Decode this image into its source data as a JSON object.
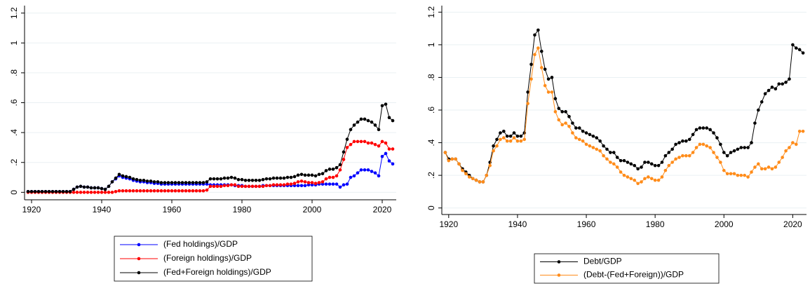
{
  "chart_data": [
    {
      "type": "line",
      "x": [
        1919,
        1920,
        1921,
        1922,
        1923,
        1924,
        1925,
        1926,
        1927,
        1928,
        1929,
        1930,
        1931,
        1932,
        1933,
        1934,
        1935,
        1936,
        1937,
        1938,
        1939,
        1940,
        1941,
        1942,
        1943,
        1944,
        1945,
        1946,
        1947,
        1948,
        1949,
        1950,
        1951,
        1952,
        1953,
        1954,
        1955,
        1956,
        1957,
        1958,
        1959,
        1960,
        1961,
        1962,
        1963,
        1964,
        1965,
        1966,
        1967,
        1968,
        1969,
        1970,
        1971,
        1972,
        1973,
        1974,
        1975,
        1976,
        1977,
        1978,
        1979,
        1980,
        1981,
        1982,
        1983,
        1984,
        1985,
        1986,
        1987,
        1988,
        1989,
        1990,
        1991,
        1992,
        1993,
        1994,
        1995,
        1996,
        1997,
        1998,
        1999,
        2000,
        2001,
        2002,
        2003,
        2004,
        2005,
        2006,
        2007,
        2008,
        2009,
        2010,
        2011,
        2012,
        2013,
        2014,
        2015,
        2016,
        2017,
        2018,
        2019,
        2020,
        2021,
        2022,
        2023
      ],
      "series": [
        {
          "name": "(Fed holdings)/GDP",
          "color": "#0000ff",
          "values": [
            0.005,
            0.005,
            0.005,
            0.005,
            0.005,
            0.005,
            0.005,
            0.005,
            0.005,
            0.005,
            0.005,
            0.005,
            0.005,
            0.02,
            0.035,
            0.04,
            0.035,
            0.035,
            0.03,
            0.03,
            0.03,
            0.025,
            0.02,
            0.04,
            0.07,
            0.09,
            0.11,
            0.1,
            0.095,
            0.09,
            0.08,
            0.075,
            0.07,
            0.07,
            0.065,
            0.065,
            0.06,
            0.06,
            0.055,
            0.055,
            0.055,
            0.055,
            0.055,
            0.055,
            0.055,
            0.055,
            0.055,
            0.055,
            0.055,
            0.055,
            0.055,
            0.055,
            0.05,
            0.05,
            0.05,
            0.05,
            0.05,
            0.05,
            0.05,
            0.045,
            0.045,
            0.045,
            0.04,
            0.04,
            0.04,
            0.04,
            0.04,
            0.045,
            0.045,
            0.045,
            0.045,
            0.045,
            0.045,
            0.045,
            0.045,
            0.045,
            0.045,
            0.045,
            0.045,
            0.045,
            0.05,
            0.05,
            0.05,
            0.055,
            0.055,
            0.055,
            0.055,
            0.055,
            0.055,
            0.035,
            0.05,
            0.055,
            0.1,
            0.11,
            0.13,
            0.15,
            0.15,
            0.15,
            0.14,
            0.13,
            0.11,
            0.24,
            0.26,
            0.21,
            0.19
          ]
        },
        {
          "name": "(Foreign holdings)/GDP",
          "color": "#ff0000",
          "values": [
            0,
            0,
            0,
            0,
            0,
            0,
            0,
            0,
            0,
            0,
            0,
            0,
            0,
            0,
            0,
            0,
            0,
            0,
            0,
            0,
            0,
            0,
            0,
            0,
            0,
            0.005,
            0.01,
            0.01,
            0.01,
            0.01,
            0.01,
            0.01,
            0.01,
            0.01,
            0.01,
            0.01,
            0.01,
            0.01,
            0.01,
            0.01,
            0.01,
            0.01,
            0.01,
            0.01,
            0.01,
            0.01,
            0.01,
            0.01,
            0.01,
            0.01,
            0.01,
            0.015,
            0.04,
            0.04,
            0.04,
            0.04,
            0.045,
            0.045,
            0.05,
            0.05,
            0.04,
            0.04,
            0.04,
            0.04,
            0.04,
            0.04,
            0.04,
            0.04,
            0.045,
            0.045,
            0.05,
            0.05,
            0.05,
            0.05,
            0.055,
            0.055,
            0.06,
            0.07,
            0.075,
            0.07,
            0.065,
            0.065,
            0.06,
            0.065,
            0.07,
            0.09,
            0.1,
            0.1,
            0.11,
            0.15,
            0.22,
            0.3,
            0.32,
            0.34,
            0.34,
            0.34,
            0.34,
            0.33,
            0.33,
            0.32,
            0.31,
            0.34,
            0.33,
            0.29,
            0.29
          ]
        },
        {
          "name": "(Fed+Foreign holdings)/GDP",
          "color": "#000000",
          "values": [
            0.005,
            0.005,
            0.005,
            0.005,
            0.005,
            0.005,
            0.005,
            0.005,
            0.005,
            0.005,
            0.005,
            0.005,
            0.005,
            0.02,
            0.035,
            0.04,
            0.035,
            0.035,
            0.03,
            0.03,
            0.03,
            0.025,
            0.02,
            0.04,
            0.07,
            0.095,
            0.12,
            0.11,
            0.105,
            0.1,
            0.09,
            0.085,
            0.08,
            0.08,
            0.075,
            0.075,
            0.07,
            0.07,
            0.065,
            0.065,
            0.065,
            0.065,
            0.065,
            0.065,
            0.065,
            0.065,
            0.065,
            0.065,
            0.065,
            0.065,
            0.065,
            0.07,
            0.09,
            0.09,
            0.09,
            0.09,
            0.095,
            0.095,
            0.1,
            0.095,
            0.085,
            0.085,
            0.08,
            0.08,
            0.08,
            0.08,
            0.08,
            0.085,
            0.09,
            0.09,
            0.095,
            0.095,
            0.095,
            0.095,
            0.1,
            0.1,
            0.105,
            0.115,
            0.12,
            0.115,
            0.115,
            0.115,
            0.11,
            0.12,
            0.125,
            0.145,
            0.155,
            0.155,
            0.165,
            0.185,
            0.27,
            0.355,
            0.42,
            0.45,
            0.47,
            0.49,
            0.49,
            0.48,
            0.47,
            0.45,
            0.42,
            0.58,
            0.59,
            0.5,
            0.48
          ]
        }
      ],
      "xlim": [
        1918,
        2024
      ],
      "ylim": [
        -0.05,
        1.25
      ],
      "xticks": [
        1920,
        1940,
        1960,
        1980,
        2000,
        2020
      ],
      "yticks": [
        0,
        {
          "value": 0.2,
          "label": ".2"
        },
        {
          "value": 0.4,
          "label": ".4"
        },
        {
          "value": 0.6,
          "label": ".6"
        },
        {
          "value": 0.8,
          "label": ".8"
        },
        1,
        {
          "value": 1.2,
          "label": "1.2"
        }
      ],
      "grid": true,
      "legend": "bottom"
    },
    {
      "type": "line",
      "x": [
        1919,
        1920,
        1921,
        1922,
        1923,
        1924,
        1925,
        1926,
        1927,
        1928,
        1929,
        1930,
        1931,
        1932,
        1933,
        1934,
        1935,
        1936,
        1937,
        1938,
        1939,
        1940,
        1941,
        1942,
        1943,
        1944,
        1945,
        1946,
        1947,
        1948,
        1949,
        1950,
        1951,
        1952,
        1953,
        1954,
        1955,
        1956,
        1957,
        1958,
        1959,
        1960,
        1961,
        1962,
        1963,
        1964,
        1965,
        1966,
        1967,
        1968,
        1969,
        1970,
        1971,
        1972,
        1973,
        1974,
        1975,
        1976,
        1977,
        1978,
        1979,
        1980,
        1981,
        1982,
        1983,
        1984,
        1985,
        1986,
        1987,
        1988,
        1989,
        1990,
        1991,
        1992,
        1993,
        1994,
        1995,
        1996,
        1997,
        1998,
        1999,
        2000,
        2001,
        2002,
        2003,
        2004,
        2005,
        2006,
        2007,
        2008,
        2009,
        2010,
        2011,
        2012,
        2013,
        2014,
        2015,
        2016,
        2017,
        2018,
        2019,
        2020,
        2021,
        2022,
        2023
      ],
      "series": [
        {
          "name": "Debt/GDP",
          "color": "#000000",
          "values": [
            0.34,
            0.3,
            0.3,
            0.3,
            0.27,
            0.24,
            0.22,
            0.2,
            0.18,
            0.17,
            0.16,
            0.16,
            0.2,
            0.28,
            0.38,
            0.42,
            0.46,
            0.47,
            0.44,
            0.44,
            0.46,
            0.44,
            0.44,
            0.46,
            0.71,
            0.88,
            1.06,
            1.09,
            0.96,
            0.85,
            0.79,
            0.8,
            0.67,
            0.61,
            0.59,
            0.59,
            0.56,
            0.52,
            0.49,
            0.49,
            0.47,
            0.46,
            0.45,
            0.44,
            0.43,
            0.41,
            0.38,
            0.36,
            0.34,
            0.34,
            0.31,
            0.29,
            0.29,
            0.28,
            0.27,
            0.26,
            0.24,
            0.25,
            0.28,
            0.28,
            0.27,
            0.26,
            0.26,
            0.28,
            0.32,
            0.34,
            0.36,
            0.39,
            0.4,
            0.41,
            0.41,
            0.42,
            0.45,
            0.48,
            0.49,
            0.49,
            0.49,
            0.48,
            0.46,
            0.43,
            0.39,
            0.34,
            0.32,
            0.34,
            0.35,
            0.36,
            0.37,
            0.37,
            0.37,
            0.4,
            0.52,
            0.6,
            0.65,
            0.7,
            0.72,
            0.74,
            0.73,
            0.76,
            0.76,
            0.77,
            0.79,
            1.0,
            0.98,
            0.97,
            0.95
          ]
        },
        {
          "name": "(Debt-(Fed+Foreign))/GDP",
          "color": "#ff8c1a",
          "values": [
            0.34,
            0.29,
            0.3,
            0.3,
            0.27,
            0.23,
            0.21,
            0.19,
            0.18,
            0.17,
            0.16,
            0.16,
            0.2,
            0.26,
            0.35,
            0.38,
            0.42,
            0.43,
            0.41,
            0.41,
            0.43,
            0.41,
            0.41,
            0.42,
            0.64,
            0.79,
            0.94,
            0.98,
            0.86,
            0.75,
            0.71,
            0.71,
            0.59,
            0.54,
            0.51,
            0.52,
            0.5,
            0.46,
            0.43,
            0.42,
            0.41,
            0.39,
            0.38,
            0.37,
            0.36,
            0.35,
            0.32,
            0.3,
            0.28,
            0.27,
            0.25,
            0.22,
            0.2,
            0.19,
            0.18,
            0.17,
            0.15,
            0.16,
            0.18,
            0.19,
            0.18,
            0.17,
            0.17,
            0.19,
            0.23,
            0.26,
            0.28,
            0.3,
            0.31,
            0.32,
            0.32,
            0.32,
            0.34,
            0.37,
            0.39,
            0.39,
            0.38,
            0.37,
            0.34,
            0.31,
            0.28,
            0.23,
            0.21,
            0.21,
            0.21,
            0.2,
            0.2,
            0.2,
            0.19,
            0.22,
            0.25,
            0.27,
            0.24,
            0.24,
            0.25,
            0.24,
            0.25,
            0.28,
            0.31,
            0.35,
            0.37,
            0.4,
            0.39,
            0.47,
            0.47
          ]
        }
      ],
      "xlim": [
        1918,
        2024
      ],
      "ylim": [
        -0.04,
        1.24
      ],
      "xticks": [
        1920,
        1940,
        1960,
        1980,
        2000,
        2020
      ],
      "yticks": [
        0,
        {
          "value": 0.2,
          "label": ".2"
        },
        {
          "value": 0.4,
          "label": ".4"
        },
        {
          "value": 0.6,
          "label": ".6"
        },
        {
          "value": 0.8,
          "label": ".8"
        },
        1,
        {
          "value": 1.2,
          "label": "1.2"
        }
      ],
      "grid": true,
      "legend": "bottom"
    }
  ]
}
